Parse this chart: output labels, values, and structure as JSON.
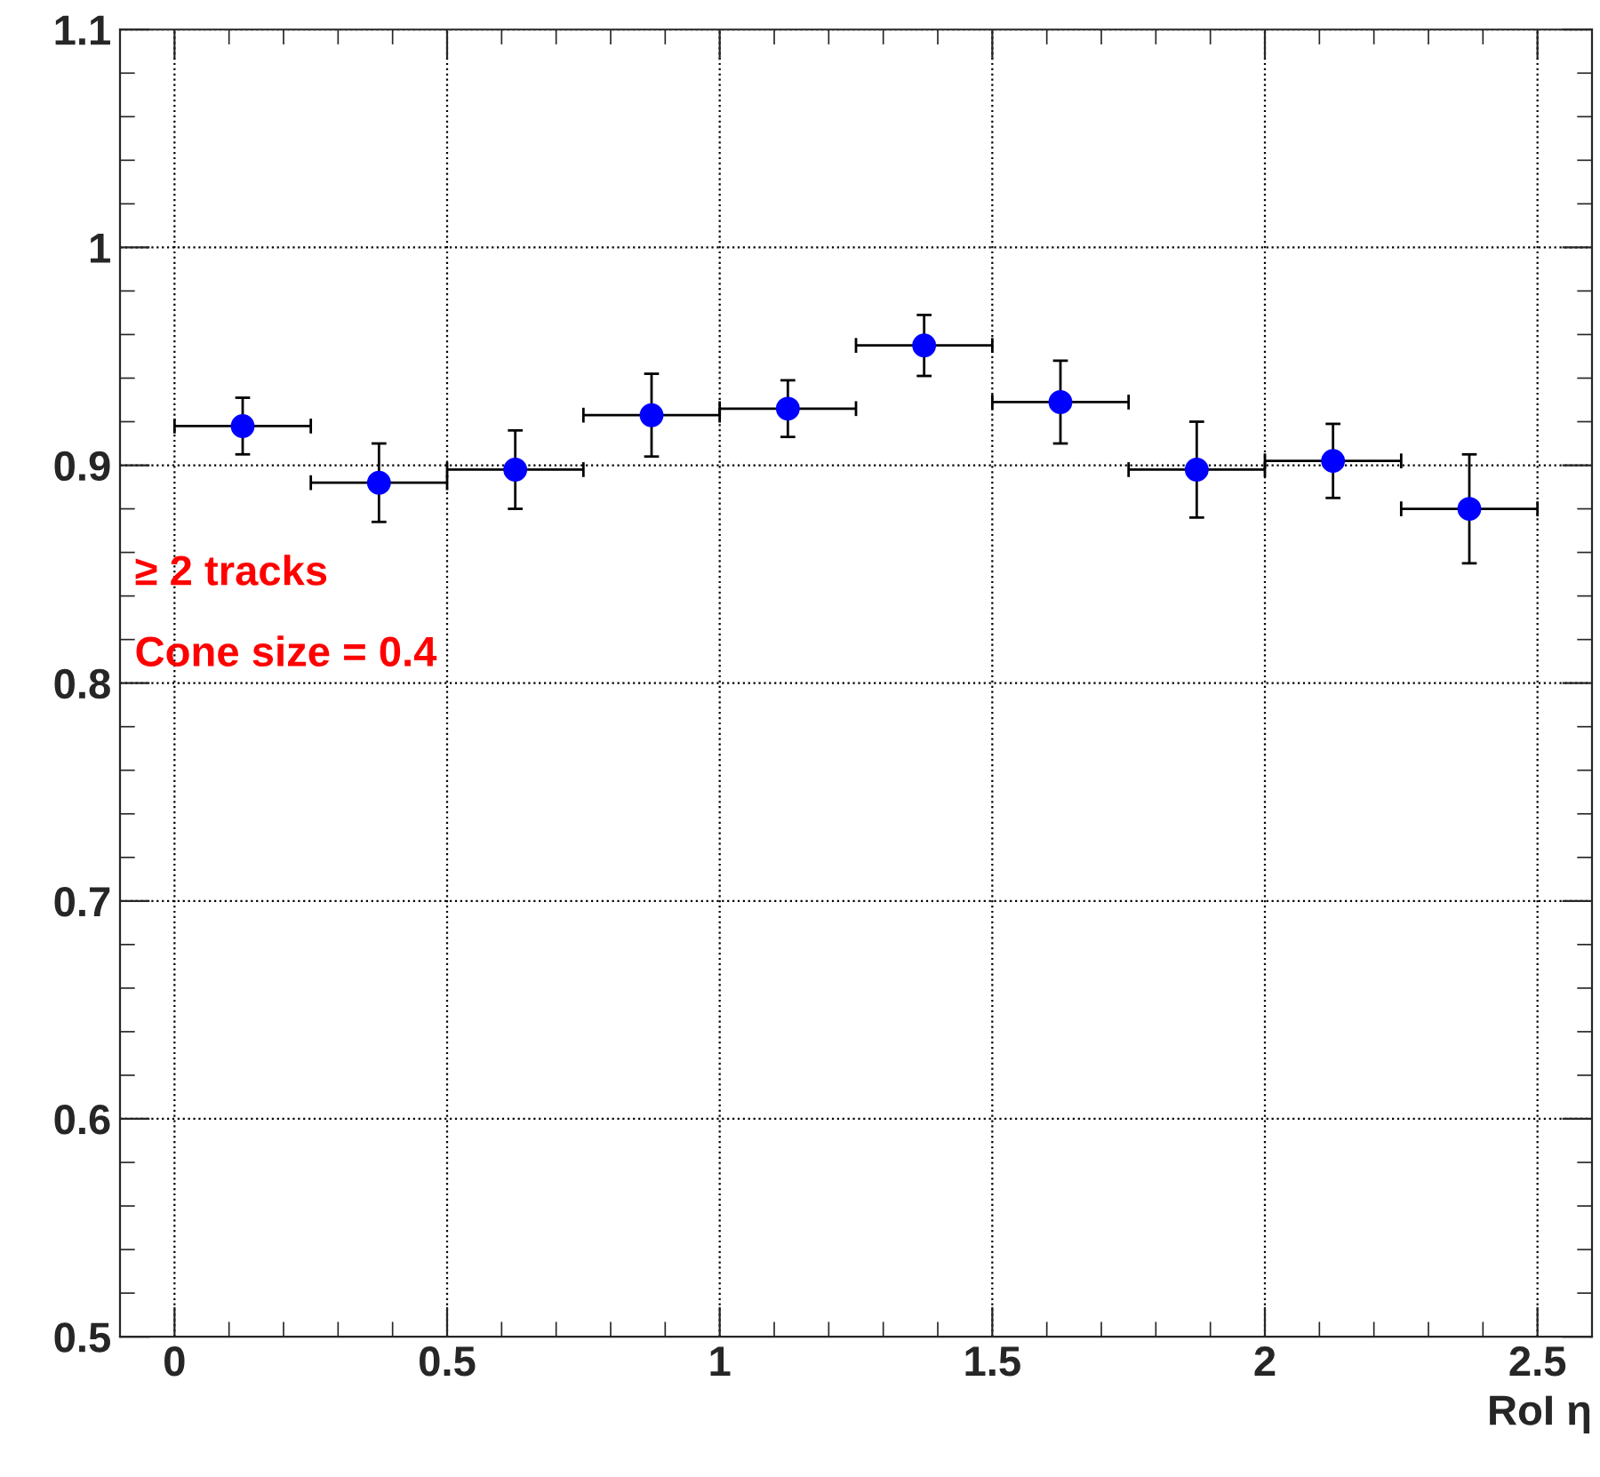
{
  "chart_data": {
    "type": "scatter",
    "xlabel": "RoI η",
    "x": [
      0.125,
      0.375,
      0.625,
      0.875,
      1.125,
      1.375,
      1.625,
      1.875,
      2.125,
      2.375
    ],
    "series": [
      {
        "color": "#0000ff",
        "values": [
          0.918,
          0.892,
          0.898,
          0.923,
          0.926,
          0.955,
          0.929,
          0.898,
          0.902,
          0.88
        ],
        "errors": [
          0.013,
          0.018,
          0.018,
          0.019,
          0.013,
          0.014,
          0.019,
          0.022,
          0.017,
          0.025
        ],
        "xerrors": [
          0.125,
          0.125,
          0.125,
          0.125,
          0.125,
          0.125,
          0.125,
          0.125,
          0.125,
          0.125
        ]
      }
    ],
    "xlim": [
      -0.1,
      2.6
    ],
    "xticks": [
      0,
      0.5,
      1,
      1.5,
      2,
      2.5
    ],
    "ylim": [
      0.5,
      1.1
    ],
    "yticks": [
      0.5,
      0.6,
      0.7,
      0.8,
      0.9,
      1,
      1.1
    ],
    "grid": true,
    "marker": "circle",
    "annotations": [
      "≥ 2 tracks",
      "Cone size = 0.4"
    ]
  }
}
